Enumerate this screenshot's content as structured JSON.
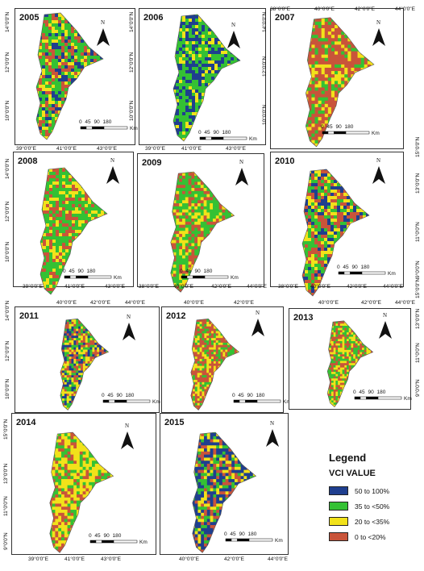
{
  "panels": [
    {
      "year": "2005",
      "lats": [
        "14°0'0\"N",
        "12°0'0\"N",
        "10°0'0\"N"
      ],
      "lons": [
        "39°0'0\"E",
        "41°0'0\"E",
        "43°0'0\"E"
      ],
      "scale": "0  45 90       180",
      "km": "Km",
      "north": "N"
    },
    {
      "year": "2006",
      "lats": [
        "14°0'0\"N",
        "12°0'0\"N",
        "10°0'0\"N"
      ],
      "lons": [
        "39°0'0\"E",
        "41°0'0\"E",
        "43°0'0\"E"
      ],
      "scale": "0  45 90       180",
      "km": "Km",
      "north": "N"
    },
    {
      "year": "2007",
      "lats": [
        "14°0'0\"N",
        "12°0'0\"N",
        "10°0'0\"N"
      ],
      "lons": [
        "38°0'0\"E",
        "40°0'0\"E",
        "42°0'0\"E",
        "44°0'0\"E"
      ],
      "scale": "0  45 90       180",
      "km": "Km",
      "north": "N"
    },
    {
      "year": "2008",
      "lats": [
        "14°0'0\"N",
        "12°0'0\"N",
        "10°0'0\"N"
      ],
      "lons": [
        "39°0'0\"E",
        "41°0'0\"E",
        "43°0'0\"E"
      ],
      "scale": "0  45 90       180",
      "km": "Km",
      "north": "N"
    },
    {
      "year": "2009",
      "lats": [],
      "lons": [
        "38°0'0\"E",
        "40°0'0\"E",
        "42°0'0\"E",
        "44°0'0\"E"
      ],
      "scale": "0  45 90       180",
      "km": "Km",
      "north": "N"
    },
    {
      "year": "2010",
      "lats": [
        "15°0'0\"N",
        "13°0'0\"N",
        "11°0'0\"N",
        "9°0'0\"N"
      ],
      "lons": [
        "38°0'0\"E",
        "40°0'0\"E",
        "42°0'0\"E",
        "44°0'0\"E"
      ],
      "scale": "0  45 90       180",
      "km": "Km",
      "north": "N"
    },
    {
      "year": "2011",
      "lats": [
        "14°0'0\"N",
        "12°0'0\"N",
        "10°0'0\"N"
      ],
      "lons": [
        "40°0'0\"E",
        "42°0'0\"E",
        "44°0'0\"E"
      ],
      "scale": "0 45 90     180",
      "km": "Km",
      "north": "N"
    },
    {
      "year": "2012",
      "lats": [],
      "lons": [
        "40°0'0\"E",
        "42°0'0\"E"
      ],
      "scale": "0  45 90       180",
      "km": "Km",
      "north": "N"
    },
    {
      "year": "2013",
      "lats": [
        "15°0'0\"N",
        "13°0'0\"N",
        "11°0'0\"N",
        "9°0'0\"N"
      ],
      "lons": [
        "40°0'0\"E",
        "42°0'0\"E",
        "44°0'0\"E"
      ],
      "scale": "0 45 90     180",
      "km": "Km",
      "north": "N"
    },
    {
      "year": "2014",
      "lats": [
        "15°0'0\"N",
        "13°0'0\"N",
        "11°0'0\"N",
        "9°0'0\"N"
      ],
      "lons": [
        "39°0'0\"E",
        "41°0'0\"E",
        "43°0'0\"E"
      ],
      "scale": "0  45 90       180",
      "km": "Km",
      "north": "N"
    },
    {
      "year": "2015",
      "lats": [],
      "lons": [
        "40°0'0\"E",
        "42°0'0\"E",
        "44°0'0\"E"
      ],
      "scale": "0  45 90       180",
      "km": "Km",
      "north": "N"
    }
  ],
  "legend": {
    "title": "Legend",
    "subtitle": "VCI VALUE",
    "items": [
      {
        "label": "50 to 100%",
        "color": "#1f3f8f"
      },
      {
        "label": "35 to <50%",
        "color": "#34c134"
      },
      {
        "label": "20 to <35%",
        "color": "#f2e21a"
      },
      {
        "label": "0 to <20%",
        "color": "#c9543a"
      }
    ]
  },
  "colors": {
    "blue": "#1f3f8f",
    "green": "#34c134",
    "yellow": "#f2e21a",
    "red": "#c9543a"
  }
}
